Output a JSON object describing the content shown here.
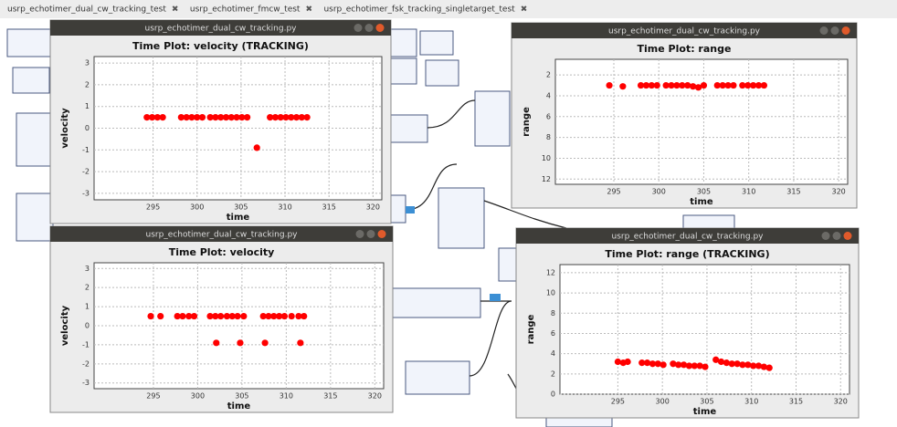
{
  "tabs": [
    "usrp_echotimer_dual_cw_tracking_test",
    "usrp_echotimer_fmcw_test",
    "usrp_echotimer_fsk_tracking_singletarget_test"
  ],
  "windows": [
    {
      "window_title": "usrp_echotimer_dual_cw_tracking.py",
      "plot_title": "Time Plot: velocity (TRACKING)",
      "xlabel": "time",
      "ylabel": "velocity",
      "xlim": [
        288.3,
        321
      ],
      "ylim": [
        -3.3,
        3.3
      ],
      "xticks": [
        295,
        300,
        305,
        310,
        315,
        320
      ],
      "yticks": [
        3,
        2,
        1,
        0,
        -1,
        -2,
        -3
      ],
      "y_inverted": false,
      "color": "#ff0000",
      "points": {
        "x": [
          294.3,
          294.9,
          295.5,
          296.1,
          298.2,
          298.8,
          299.4,
          300.0,
          300.6,
          301.5,
          302.1,
          302.7,
          303.3,
          303.9,
          304.5,
          305.1,
          305.7,
          306.8,
          308.3,
          308.9,
          309.5,
          310.1,
          310.7,
          311.3,
          311.9,
          312.5
        ],
        "y": [
          0.5,
          0.5,
          0.5,
          0.5,
          0.5,
          0.5,
          0.5,
          0.5,
          0.5,
          0.5,
          0.5,
          0.5,
          0.5,
          0.5,
          0.5,
          0.5,
          0.5,
          -0.9,
          0.5,
          0.5,
          0.5,
          0.5,
          0.5,
          0.5,
          0.5,
          0.5
        ]
      }
    },
    {
      "window_title": "usrp_echotimer_dual_cw_tracking.py",
      "plot_title": "Time Plot: range",
      "xlabel": "time",
      "ylabel": "range",
      "xlim": [
        288.5,
        321
      ],
      "ylim": [
        0.5,
        12.5
      ],
      "xticks": [
        295,
        300,
        305,
        310,
        315,
        320
      ],
      "yticks": [
        2,
        4,
        6,
        8,
        10,
        12
      ],
      "y_inverted": true,
      "color": "#ff0000",
      "points": {
        "x": [
          294.5,
          296,
          298,
          298.6,
          299.2,
          299.8,
          300.8,
          301.4,
          302,
          302.6,
          303.2,
          303.8,
          304.4,
          305,
          306.5,
          307.1,
          307.7,
          308.3,
          309.3,
          309.9,
          310.5,
          311.1,
          311.7
        ],
        "y": [
          3,
          3.1,
          3,
          3,
          3,
          3,
          3,
          3,
          3,
          3,
          3,
          3.1,
          3.2,
          3,
          3,
          3,
          3,
          3,
          3,
          3,
          3,
          3,
          3
        ]
      }
    },
    {
      "window_title": "usrp_echotimer_dual_cw_tracking.py",
      "plot_title": "Time Plot: velocity",
      "xlabel": "time",
      "ylabel": "velocity",
      "xlim": [
        288.3,
        321
      ],
      "ylim": [
        -3.3,
        3.3
      ],
      "xticks": [
        295,
        300,
        305,
        310,
        315,
        320
      ],
      "yticks": [
        3,
        2,
        1,
        0,
        -1,
        -2,
        -3
      ],
      "y_inverted": false,
      "color": "#ff0000",
      "points": {
        "x": [
          294.7,
          295.8,
          297.7,
          298.3,
          299.0,
          299.6,
          301.4,
          302.0,
          302.6,
          303.3,
          303.9,
          304.5,
          305.2,
          307.4,
          308.0,
          308.6,
          309.2,
          309.8,
          310.6,
          311.4,
          312.0,
          302.1,
          304.8,
          307.6,
          311.6
        ],
        "y": [
          0.5,
          0.5,
          0.5,
          0.5,
          0.5,
          0.5,
          0.5,
          0.5,
          0.5,
          0.5,
          0.5,
          0.5,
          0.5,
          0.5,
          0.5,
          0.5,
          0.5,
          0.5,
          0.5,
          0.5,
          0.5,
          -0.9,
          -0.9,
          -0.9,
          -0.9
        ]
      }
    },
    {
      "window_title": "usrp_echotimer_dual_cw_tracking.py",
      "plot_title": "Time Plot: range (TRACKING)",
      "xlabel": "time",
      "ylabel": "range",
      "xlim": [
        288.5,
        321
      ],
      "ylim": [
        0,
        12.8
      ],
      "xticks": [
        295,
        300,
        305,
        310,
        315,
        320
      ],
      "yticks": [
        0,
        2,
        4,
        6,
        8,
        10,
        12
      ],
      "y_inverted": false,
      "color": "#ff0000",
      "points": {
        "x": [
          295.0,
          295.6,
          296.1,
          297.7,
          298.3,
          298.9,
          299.5,
          300.1,
          301.2,
          301.8,
          302.4,
          303.0,
          303.6,
          304.2,
          304.8,
          306.0,
          306.6,
          307.2,
          307.8,
          308.4,
          309.0,
          309.6,
          310.2,
          310.8,
          311.4,
          312.0
        ],
        "y": [
          3.2,
          3.1,
          3.2,
          3.1,
          3.1,
          3.0,
          3.0,
          2.9,
          3.0,
          2.9,
          2.9,
          2.8,
          2.8,
          2.8,
          2.7,
          3.4,
          3.2,
          3.1,
          3.0,
          3.0,
          2.9,
          2.9,
          2.8,
          2.8,
          2.7,
          2.6
        ]
      }
    }
  ]
}
